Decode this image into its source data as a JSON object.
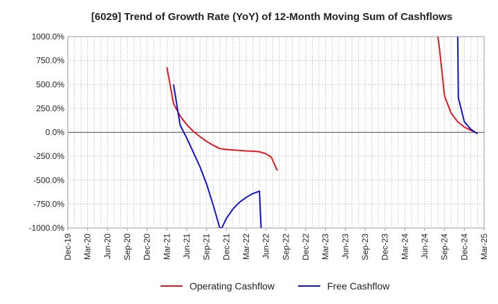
{
  "chart_data": {
    "type": "line",
    "title": "[6029]  Trend of Growth Rate (YoY) of 12-Month Moving Sum of Cashflows",
    "xlabel": "",
    "ylabel": "",
    "x_tick_labels": [
      "Dec-19",
      "Mar-20",
      "Jun-20",
      "Sep-20",
      "Dec-20",
      "Mar-21",
      "Jun-21",
      "Sep-21",
      "Dec-21",
      "Mar-22",
      "Jun-22",
      "Sep-22",
      "Dec-22",
      "Mar-23",
      "Jun-23",
      "Sep-23",
      "Dec-23",
      "Mar-24",
      "Jun-24",
      "Sep-24",
      "Dec-24",
      "Mar-25"
    ],
    "y_tick_labels": [
      "1000.0%",
      "750.0%",
      "500.0%",
      "250.0%",
      "0.0%",
      "-250.0%",
      "-500.0%",
      "-750.0%",
      "-1000.0%"
    ],
    "ylim": [
      -1000,
      1000
    ],
    "xlim_months": [
      0,
      63
    ],
    "grid": true,
    "legend_position": "bottom-center",
    "series": [
      {
        "name": "Operating Cashflow",
        "color": "#e8141b",
        "points": [
          [
            15.0,
            680
          ],
          [
            16.0,
            300
          ],
          [
            17.0,
            170
          ],
          [
            18.0,
            80
          ],
          [
            19.0,
            10
          ],
          [
            20.0,
            -45
          ],
          [
            21.0,
            -95
          ],
          [
            22.0,
            -135
          ],
          [
            23.0,
            -170
          ],
          [
            24.0,
            -180
          ],
          [
            25.0,
            -185
          ],
          [
            26.0,
            -190
          ],
          [
            27.0,
            -195
          ],
          [
            28.0,
            -198
          ],
          [
            29.0,
            -203
          ],
          [
            30.0,
            -225
          ],
          [
            30.8,
            -260
          ],
          [
            31.7,
            -400
          ]
        ],
        "tail": [
          [
            56.0,
            1000
          ],
          [
            56.2,
            900
          ],
          [
            57.0,
            380
          ],
          [
            58.0,
            200
          ],
          [
            59.0,
            110
          ],
          [
            60.0,
            55
          ],
          [
            61.0,
            20
          ],
          [
            62.0,
            -10
          ]
        ]
      },
      {
        "name": "Free Cashflow",
        "color": "#1010d8",
        "points": [
          [
            16.0,
            500
          ],
          [
            17.0,
            75
          ],
          [
            18.0,
            -60
          ],
          [
            19.0,
            -210
          ],
          [
            20.0,
            -360
          ],
          [
            21.0,
            -540
          ],
          [
            22.0,
            -760
          ],
          [
            23.0,
            -1000
          ],
          [
            23.3,
            -1000
          ],
          [
            24.0,
            -900
          ],
          [
            25.0,
            -800
          ],
          [
            26.0,
            -730
          ],
          [
            27.0,
            -680
          ],
          [
            28.0,
            -640
          ],
          [
            29.0,
            -615
          ],
          [
            29.25,
            -1000
          ]
        ],
        "tail": [
          [
            59.0,
            1000
          ],
          [
            59.1,
            360
          ],
          [
            60.0,
            110
          ],
          [
            61.0,
            30
          ],
          [
            62.0,
            -15
          ]
        ]
      }
    ]
  }
}
